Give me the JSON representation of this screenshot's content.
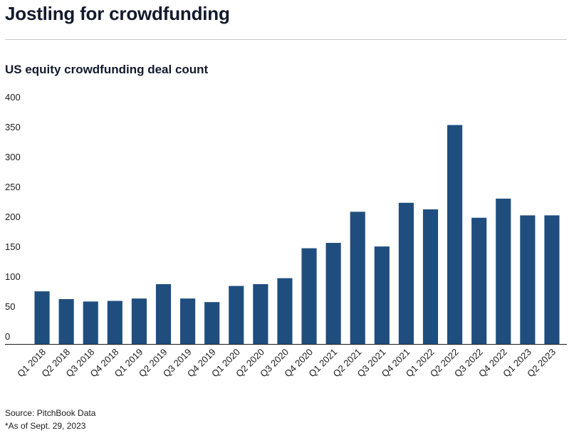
{
  "header": {
    "title": "Jostling for crowdfunding",
    "subtitle": "US equity crowdfunding deal count"
  },
  "footer": {
    "source": "Source: PitchBook Data",
    "note": "*As of Sept. 29, 2023"
  },
  "colors": {
    "bar": "#1f4e7e",
    "axis": "#1b1b1b"
  },
  "chart_data": {
    "type": "bar",
    "title": "US equity crowdfunding deal count",
    "xlabel": "",
    "ylabel": "",
    "ylim": [
      0,
      400
    ],
    "yticks": [
      0,
      50,
      100,
      150,
      200,
      250,
      300,
      350,
      400
    ],
    "grid": false,
    "categories": [
      "Q1 2018",
      "Q2 2018",
      "Q3 2018",
      "Q4 2018",
      "Q1 2019",
      "Q2 2019",
      "Q3 2019",
      "Q4 2019",
      "Q1 2020",
      "Q2 2020",
      "Q3 2020",
      "Q4 2020",
      "Q1 2021",
      "Q2 2021",
      "Q3 2021",
      "Q4 2021",
      "Q1 2022",
      "Q2 2022",
      "Q3 2022",
      "Q4 2022",
      "Q1 2023",
      "Q2 2023"
    ],
    "values": [
      88,
      75,
      71,
      72,
      76,
      100,
      76,
      70,
      97,
      100,
      110,
      160,
      169,
      221,
      163,
      236,
      225,
      366,
      211,
      243,
      215,
      215
    ]
  }
}
